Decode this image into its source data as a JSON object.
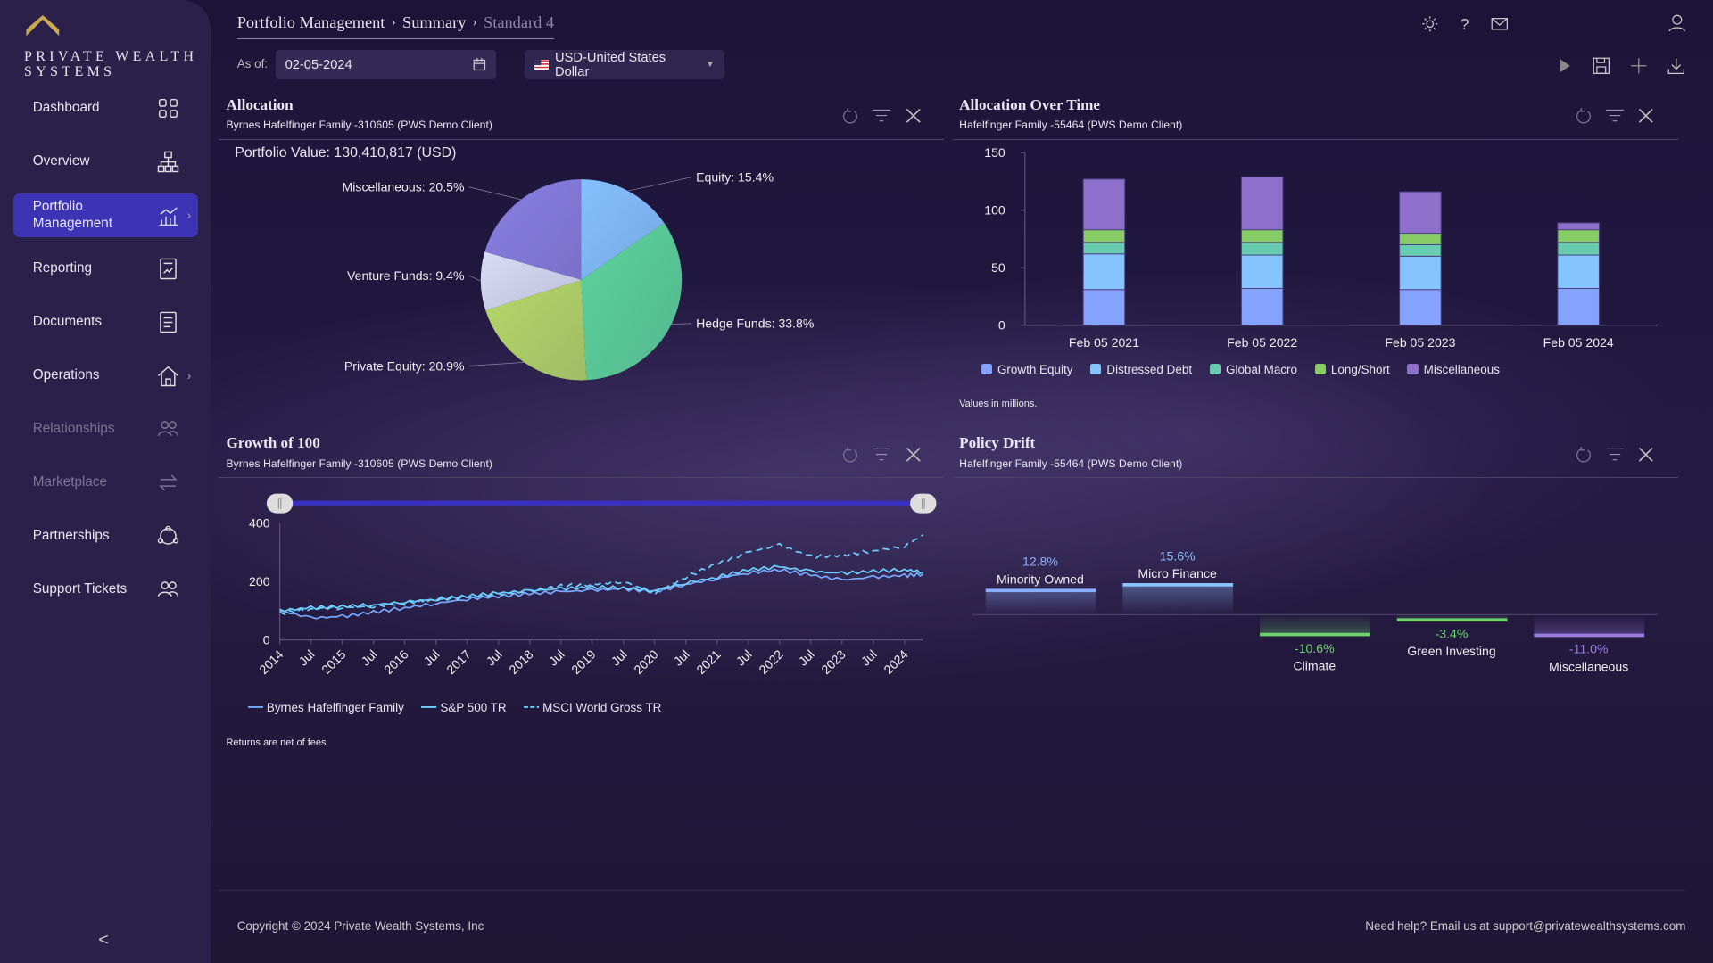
{
  "brand": {
    "line1": "PRIVATE WEALTH",
    "line2": "SYSTEMS",
    "accent": "#c9a94e"
  },
  "sidebar": {
    "items": [
      {
        "label": "Dashboard",
        "icon": "grid-icon"
      },
      {
        "label": "Overview",
        "icon": "hierarchy-icon"
      },
      {
        "label": "Portfolio Management",
        "icon": "chart-icon",
        "active": true,
        "chevron": true
      },
      {
        "label": "Reporting",
        "icon": "report-icon"
      },
      {
        "label": "Documents",
        "icon": "document-icon"
      },
      {
        "label": "Operations",
        "icon": "home-icon",
        "chevron": true
      },
      {
        "label": "Relationships",
        "icon": "people-icon",
        "disabled": true
      },
      {
        "label": "Marketplace",
        "icon": "exchange-icon",
        "disabled": true
      },
      {
        "label": "Partnerships",
        "icon": "network-icon"
      },
      {
        "label": "Support Tickets",
        "icon": "support-icon"
      }
    ],
    "collapse": "<"
  },
  "breadcrumb": [
    "Portfolio Management",
    "Summary",
    "Standard 4"
  ],
  "toolbar": {
    "as_of_label": "As of:",
    "date": "02-05-2024",
    "currency": "USD-United States Dollar"
  },
  "allocation": {
    "title": "Allocation",
    "subtitle": "Byrnes Hafelfinger Family -310605 (PWS Demo Client)",
    "portfolio_value": "Portfolio Value: 130,410,817 (USD)",
    "slices": [
      {
        "label": "Equity: 15.4%",
        "value": 15.4,
        "color": "#86c0ff"
      },
      {
        "label": "Hedge Funds: 33.8%",
        "value": 33.8,
        "color": "#5cd39c"
      },
      {
        "label": "Private Equity: 20.9%",
        "value": 20.9,
        "color": "#b5d86a"
      },
      {
        "label": "Venture Funds: 9.4%",
        "value": 9.4,
        "color": "#d9dcf6"
      },
      {
        "label": "Miscellaneous: 20.5%",
        "value": 20.5,
        "color": "#8a7fe2"
      }
    ]
  },
  "allocation_over_time": {
    "title": "Allocation Over Time",
    "subtitle": "Hafelfinger Family -55464 (PWS Demo Client)",
    "note": "Values in millions."
  },
  "growth": {
    "title": "Growth of 100",
    "subtitle": "Byrnes Hafelfinger Family -310605 (PWS Demo Client)",
    "note": "Returns are net of fees.",
    "range": [
      2014,
      2024.3
    ]
  },
  "policy_drift": {
    "title": "Policy Drift",
    "subtitle": "Hafelfinger Family -55464 (PWS Demo Client)"
  },
  "chart_data": [
    {
      "type": "pie",
      "slices": [
        {
          "name": "Equity",
          "value": 15.4
        },
        {
          "name": "Hedge Funds",
          "value": 33.8
        },
        {
          "name": "Private Equity",
          "value": 20.9
        },
        {
          "name": "Venture Funds",
          "value": 9.4
        },
        {
          "name": "Miscellaneous",
          "value": 20.5
        }
      ]
    },
    {
      "type": "bar",
      "stacked": true,
      "categories": [
        "Feb 05 2021",
        "Feb 05 2022",
        "Feb 05 2023",
        "Feb 05 2024"
      ],
      "ylim": [
        0,
        150
      ],
      "yticks": [
        0,
        50,
        100,
        150
      ],
      "legend": "bottom",
      "series": [
        {
          "name": "Growth Equity",
          "color": "#86a2ff",
          "values": [
            31,
            32,
            31,
            32
          ]
        },
        {
          "name": "Distressed Debt",
          "color": "#86c4ff",
          "values": [
            31,
            29,
            29,
            29
          ]
        },
        {
          "name": "Global Macro",
          "color": "#68cdb0",
          "values": [
            10,
            11,
            10,
            11
          ]
        },
        {
          "name": "Long/Short",
          "color": "#88cc66",
          "values": [
            11,
            11,
            10,
            11
          ]
        },
        {
          "name": "Miscellaneous",
          "color": "#8e6fcc",
          "values": [
            44,
            46,
            36,
            6
          ]
        }
      ]
    },
    {
      "type": "line",
      "xticks": [
        "2014",
        "Jul",
        "2015",
        "Jul",
        "2016",
        "Jul",
        "2017",
        "Jul",
        "2018",
        "Jul",
        "2019",
        "Jul",
        "2020",
        "Jul",
        "2021",
        "Jul",
        "2022",
        "Jul",
        "2023",
        "Jul",
        "2024"
      ],
      "ylim": [
        0,
        400
      ],
      "yticks": [
        0,
        200,
        400
      ],
      "legend": "bottom-left",
      "x": [
        2014,
        2014.5,
        2015,
        2015.5,
        2016,
        2016.5,
        2017,
        2017.5,
        2018,
        2018.5,
        2019,
        2019.5,
        2020,
        2020.5,
        2021,
        2021.5,
        2022,
        2022.5,
        2023,
        2023.5,
        2024,
        2024.3
      ],
      "series": [
        {
          "name": "Byrnes Hafelfinger Family",
          "style": "solid",
          "color": "#7aa8ff",
          "values": [
            100,
            75,
            80,
            95,
            110,
            125,
            140,
            150,
            158,
            165,
            170,
            175,
            165,
            190,
            210,
            230,
            240,
            222,
            205,
            215,
            220,
            225
          ]
        },
        {
          "name": "S&P 500 TR",
          "style": "solid",
          "color": "#6fd0ff",
          "values": [
            100,
            110,
            115,
            120,
            130,
            140,
            150,
            160,
            168,
            175,
            180,
            178,
            170,
            195,
            215,
            240,
            250,
            235,
            228,
            235,
            240,
            232
          ]
        },
        {
          "name": "MSCI World Gross TR",
          "style": "dashed",
          "color": "#6fd0ff",
          "values": [
            90,
            105,
            110,
            115,
            125,
            135,
            145,
            155,
            165,
            185,
            190,
            200,
            160,
            215,
            260,
            300,
            325,
            285,
            290,
            305,
            320,
            360
          ]
        }
      ]
    },
    {
      "type": "bar",
      "categories": [
        "Minority Owned",
        "Micro Finance",
        "Climate",
        "Green Investing",
        "Miscellaneous"
      ],
      "values": [
        12.8,
        15.6,
        -10.6,
        -3.4,
        -11.0
      ],
      "labels": [
        "12.8%",
        "15.6%",
        "-10.6%",
        "-3.4%",
        "-11.0%"
      ],
      "colors": [
        "#8aaeff",
        "#8ac4ff",
        "#6ed36e",
        "#6ed36e",
        "#9b7ee0"
      ]
    }
  ],
  "footer": {
    "copyright": "Copyright © 2024 Private Wealth Systems, Inc",
    "help": "Need help? Email us at support@privatewealthsystems.com"
  }
}
